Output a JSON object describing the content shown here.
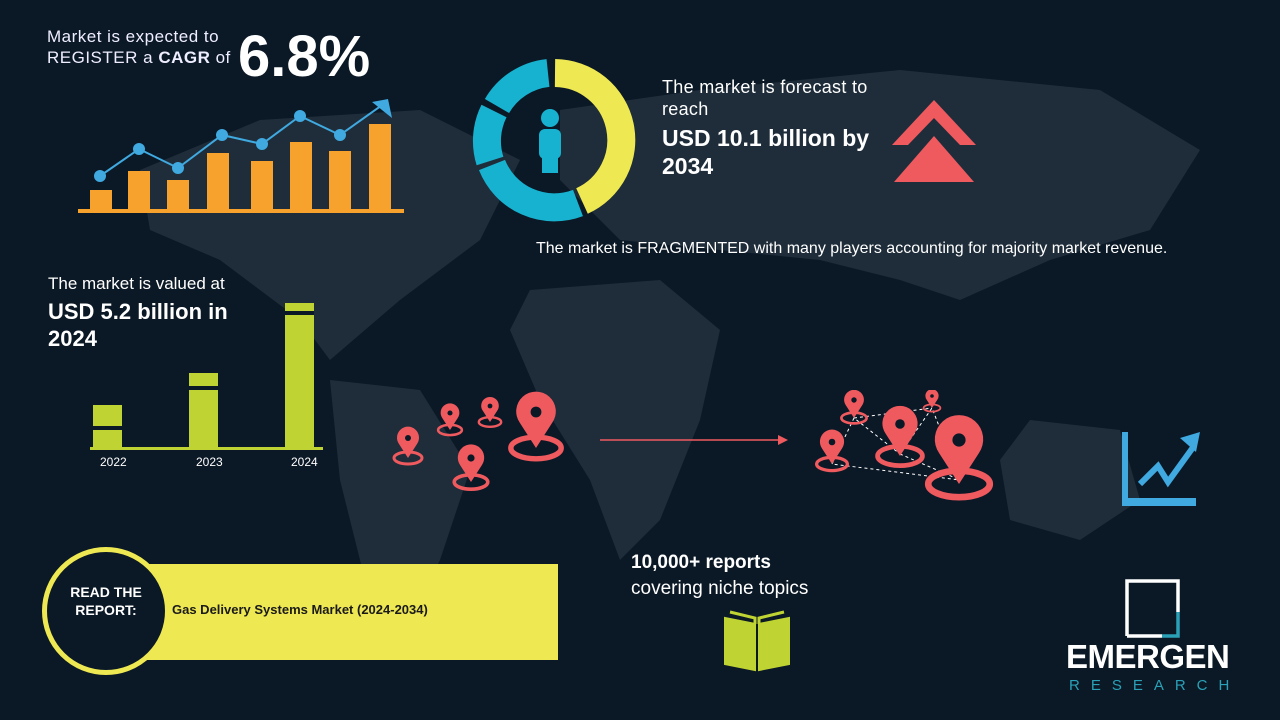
{
  "cagr": {
    "line1": "Market is expected to",
    "line2_pre": "REGISTER a ",
    "line2_bold": "CAGR",
    "line2_post": " of",
    "value": "6.8%"
  },
  "forecast": {
    "small": "The market is forecast to reach",
    "big": "USD 10.1 billion by 2034"
  },
  "fragmented": "The market is FRAGMENTED with many players accounting for majority market revenue.",
  "valued": {
    "small": "The market is valued at",
    "big": "USD 5.2 billion in 2024",
    "years": [
      "2022",
      "2023",
      "2024"
    ]
  },
  "reports": {
    "line1": "10,000+ reports",
    "line2": "covering niche topics"
  },
  "read_report": {
    "label": "READ THE REPORT:",
    "title": "Gas Delivery Systems Market (2024-2034)"
  },
  "logo": {
    "word": "EMERGEN",
    "sub": "RESEARCH"
  },
  "colors": {
    "background": "#0b1826",
    "orange": "#f7a22c",
    "blue": "#3fa9e0",
    "yellow": "#eee852",
    "lime": "#bfd433",
    "red": "#ef5a5f",
    "teal": "#17b2d0"
  }
}
